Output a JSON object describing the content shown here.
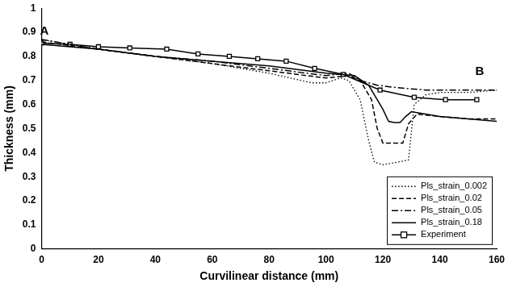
{
  "chart_data": {
    "type": "line",
    "x_label": "Curvilinear distance (mm)",
    "y_label": "Thickness (mm)",
    "xlim": [
      0,
      160
    ],
    "xticks": [
      0,
      20,
      40,
      60,
      80,
      100,
      120,
      140,
      160
    ],
    "ylim": [
      0,
      1
    ],
    "yticks": [
      0,
      0.1,
      0.2,
      0.3,
      0.4,
      0.5,
      0.6,
      0.7,
      0.8,
      0.9,
      1
    ],
    "grid": false,
    "legend": "lower right",
    "annotations": [
      {
        "text": "A",
        "x": 1,
        "y": 0.905
      },
      {
        "text": "B",
        "x": 154,
        "y": 0.735
      }
    ],
    "series": [
      {
        "name": "Pls_strain_0.002",
        "color": "#000000",
        "line_style": "dotted",
        "marker": "none",
        "x": [
          0,
          20,
          40,
          60,
          80,
          95,
          100,
          105,
          108,
          112,
          115,
          117,
          120,
          125,
          129,
          131,
          135,
          140,
          150,
          160
        ],
        "values": [
          0.87,
          0.83,
          0.8,
          0.77,
          0.73,
          0.69,
          0.69,
          0.71,
          0.7,
          0.62,
          0.45,
          0.36,
          0.35,
          0.36,
          0.37,
          0.6,
          0.64,
          0.65,
          0.65,
          0.66
        ]
      },
      {
        "name": "Pls_strain_0.02",
        "color": "#000000",
        "line_style": "dashed",
        "marker": "none",
        "x": [
          0,
          20,
          40,
          60,
          80,
          100,
          108,
          112,
          116,
          118,
          120,
          124,
          127,
          129,
          132,
          140,
          150,
          160
        ],
        "values": [
          0.86,
          0.83,
          0.8,
          0.77,
          0.74,
          0.71,
          0.72,
          0.7,
          0.62,
          0.5,
          0.44,
          0.44,
          0.44,
          0.52,
          0.56,
          0.55,
          0.54,
          0.54
        ]
      },
      {
        "name": "Pls_strain_0.05",
        "color": "#000000",
        "line_style": "dashdot",
        "marker": "none",
        "x": [
          0,
          20,
          40,
          60,
          80,
          100,
          108,
          112,
          118,
          125,
          135,
          145,
          160
        ],
        "values": [
          0.87,
          0.83,
          0.8,
          0.78,
          0.75,
          0.72,
          0.73,
          0.7,
          0.68,
          0.67,
          0.66,
          0.66,
          0.66
        ]
      },
      {
        "name": "Pls_strain_0.18",
        "color": "#000000",
        "line_style": "solid",
        "marker": "none",
        "x": [
          0,
          20,
          40,
          60,
          80,
          100,
          110,
          115,
          118,
          120,
          122,
          124,
          126,
          128,
          130,
          135,
          140,
          150,
          160
        ],
        "values": [
          0.85,
          0.83,
          0.8,
          0.78,
          0.76,
          0.73,
          0.72,
          0.68,
          0.62,
          0.58,
          0.53,
          0.525,
          0.525,
          0.55,
          0.57,
          0.56,
          0.55,
          0.54,
          0.53
        ]
      },
      {
        "name": "Experiment",
        "color": "#000000",
        "line_style": "solid",
        "marker": "square",
        "x": [
          0,
          10,
          20,
          31,
          44,
          55,
          66,
          76,
          86,
          96,
          106,
          119,
          131,
          142,
          153
        ],
        "values": [
          0.855,
          0.85,
          0.84,
          0.835,
          0.83,
          0.81,
          0.8,
          0.79,
          0.78,
          0.75,
          0.725,
          0.66,
          0.63,
          0.62,
          0.62
        ]
      }
    ]
  }
}
